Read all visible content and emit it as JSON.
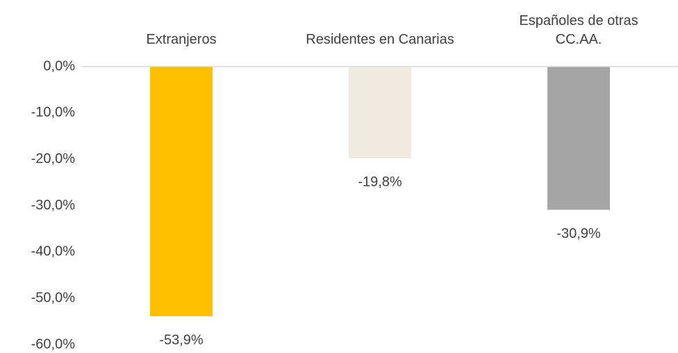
{
  "chart_data": {
    "type": "bar",
    "categories": [
      "Extranjeros",
      "Residentes en Canarias",
      "Españoles de otras\nCC.AA."
    ],
    "values": [
      -53.9,
      -19.8,
      -30.9
    ],
    "value_labels": [
      "-53,9%",
      "-19,8%",
      "-30,9%"
    ],
    "colors": [
      "#FFC000",
      "#EEEBE0",
      "#A5A5A5"
    ],
    "ylim": [
      -60,
      0
    ],
    "yticks": [
      {
        "value": 0,
        "label": "0,0%"
      },
      {
        "value": -10,
        "label": "-10,0%"
      },
      {
        "value": -20,
        "label": "-20,0%"
      },
      {
        "value": -30,
        "label": "-30,0%"
      },
      {
        "value": -40,
        "label": "-40,0%"
      },
      {
        "value": -50,
        "label": "-50,0%"
      },
      {
        "value": -60,
        "label": "-60,0%"
      }
    ],
    "grid": false
  }
}
